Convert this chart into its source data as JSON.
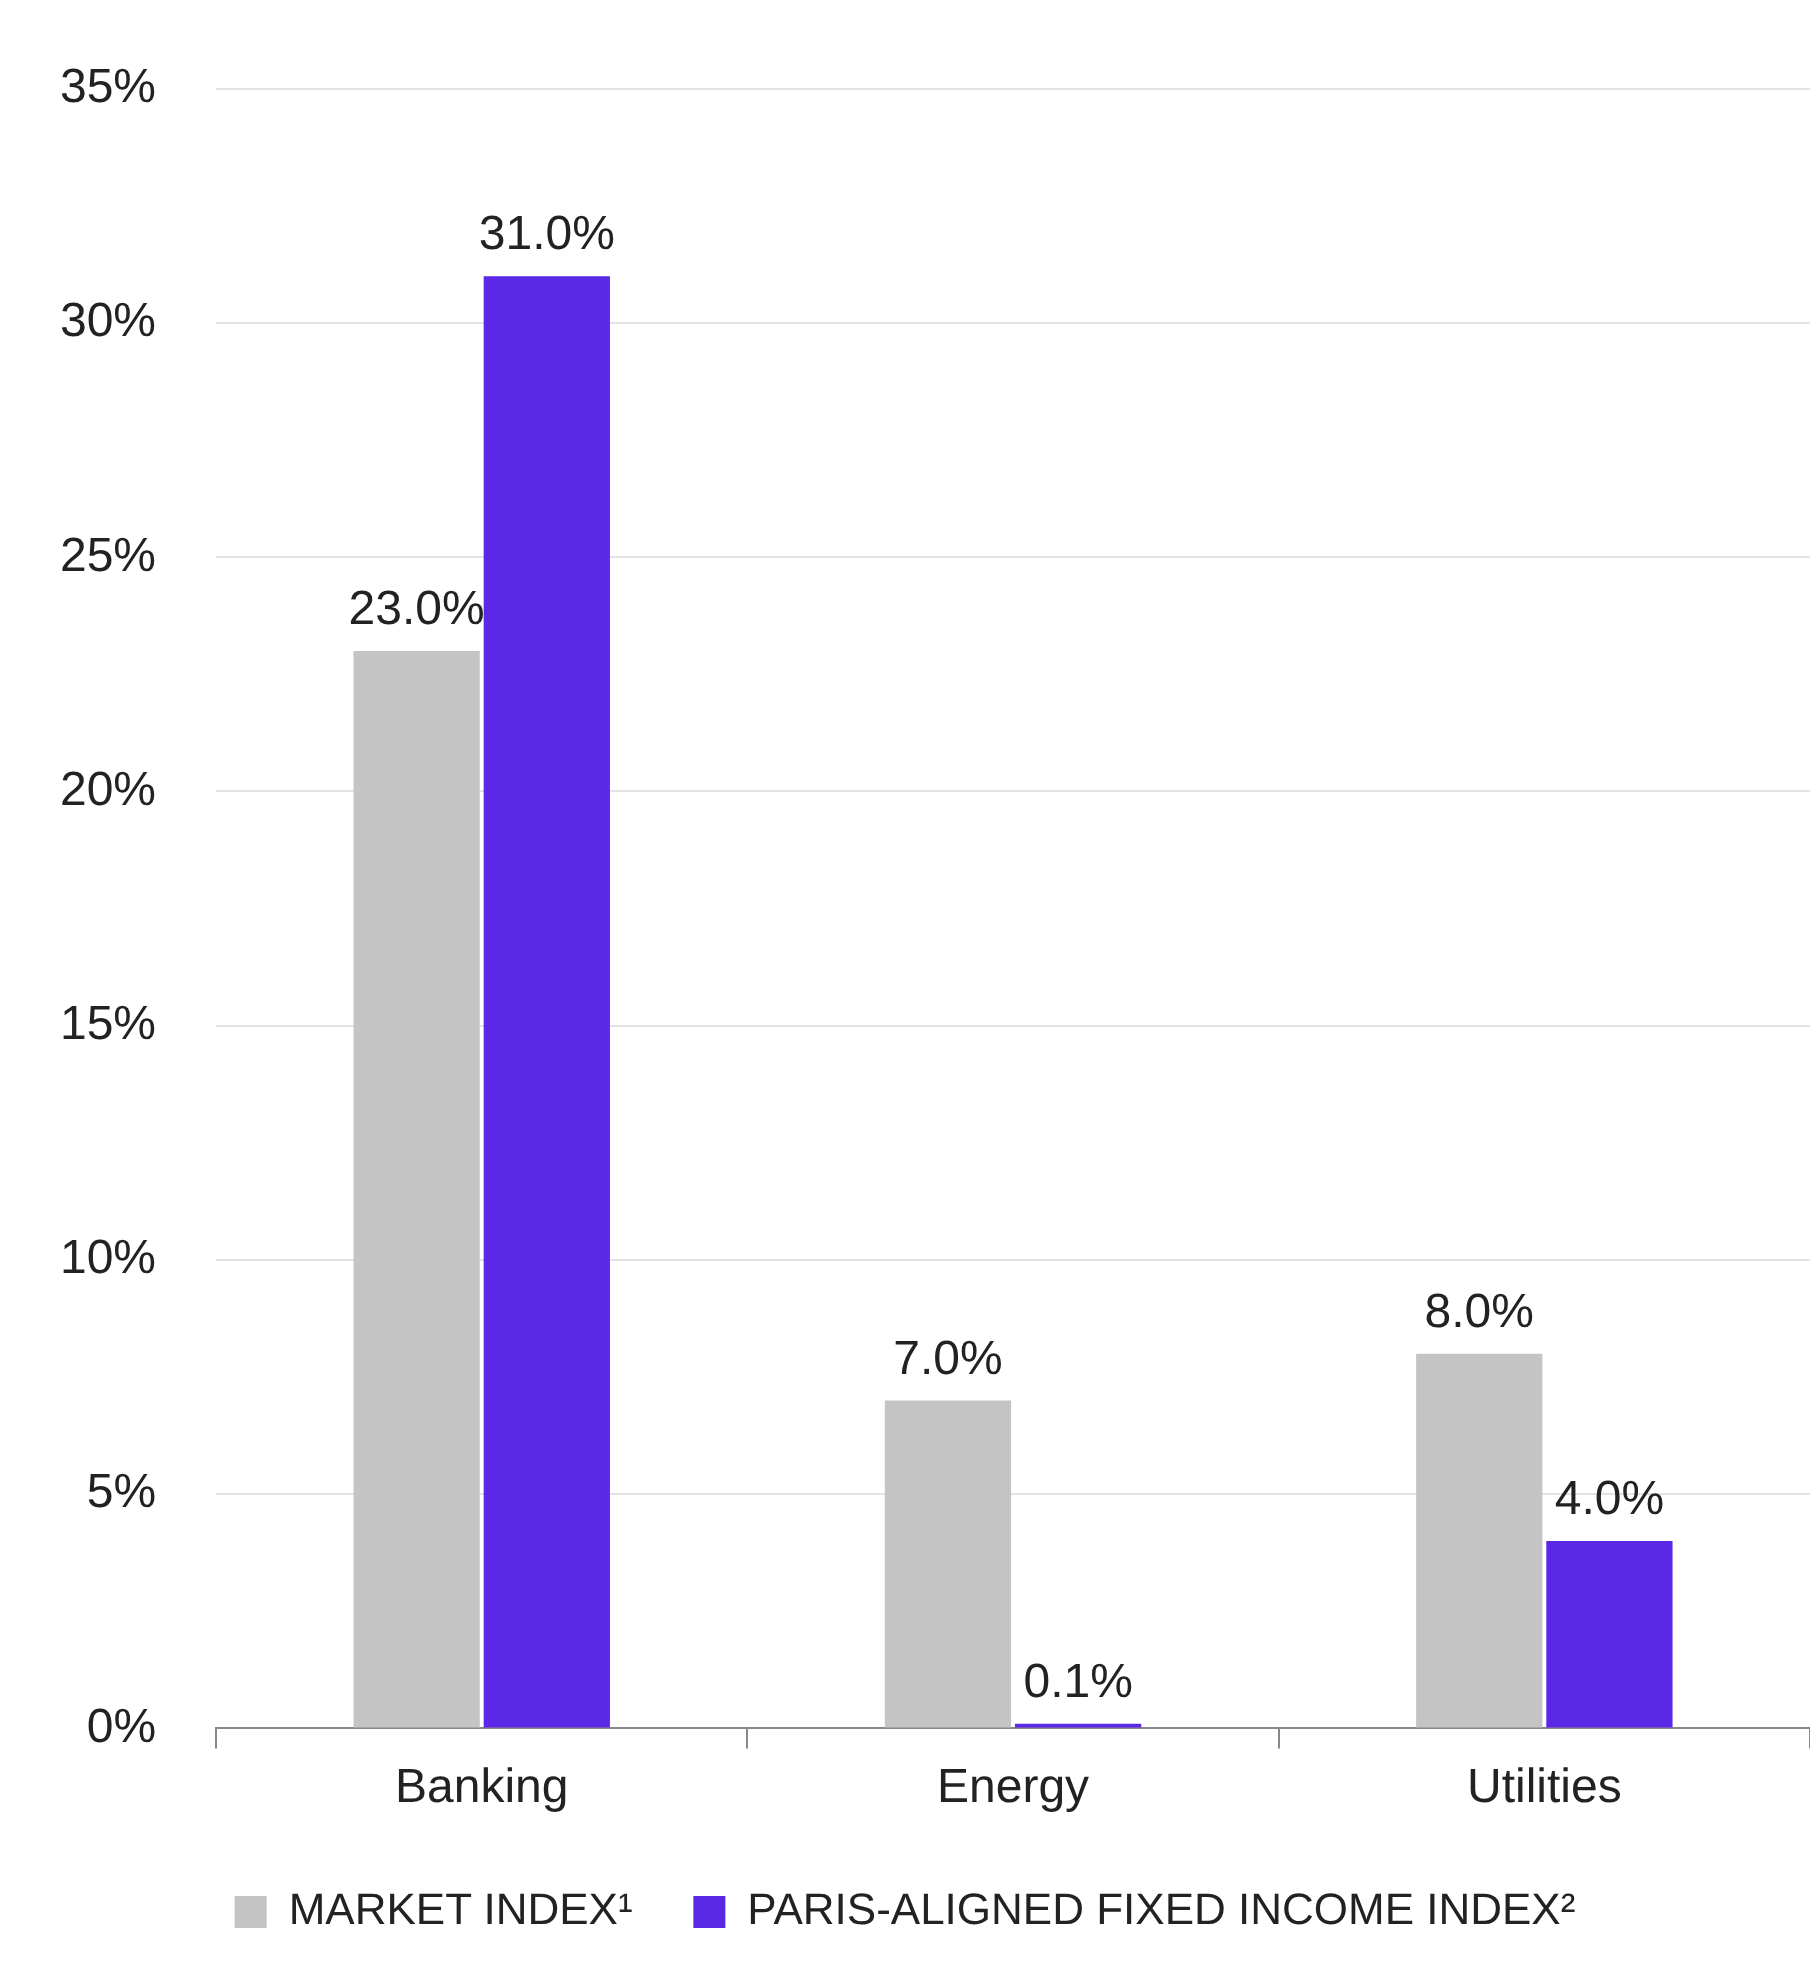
{
  "chart_data": {
    "type": "bar",
    "categories": [
      "Banking",
      "Energy",
      "Utilities"
    ],
    "series": [
      {
        "name": "MARKET INDEX¹",
        "color": "#c4c4c4",
        "values": [
          23.0,
          7.0,
          8.0
        ],
        "value_labels": [
          "23.0%",
          "7.0%",
          "8.0%"
        ]
      },
      {
        "name": "PARIS-ALIGNED FIXED INCOME INDEX²",
        "color": "#5a28e6",
        "values": [
          31.0,
          0.1,
          4.0
        ],
        "value_labels": [
          "31.0%",
          "0.1%",
          "4.0%"
        ]
      }
    ],
    "ylim": [
      0,
      35
    ],
    "yticks": [
      {
        "value": 0,
        "label": "0%"
      },
      {
        "value": 5,
        "label": "5%"
      },
      {
        "value": 10,
        "label": "10%"
      },
      {
        "value": 15,
        "label": "15%"
      },
      {
        "value": 20,
        "label": "20%"
      },
      {
        "value": 25,
        "label": "25%"
      },
      {
        "value": 30,
        "label": "30%"
      },
      {
        "value": 35,
        "label": "35%"
      }
    ],
    "grid": "y",
    "legend": "bottom"
  }
}
